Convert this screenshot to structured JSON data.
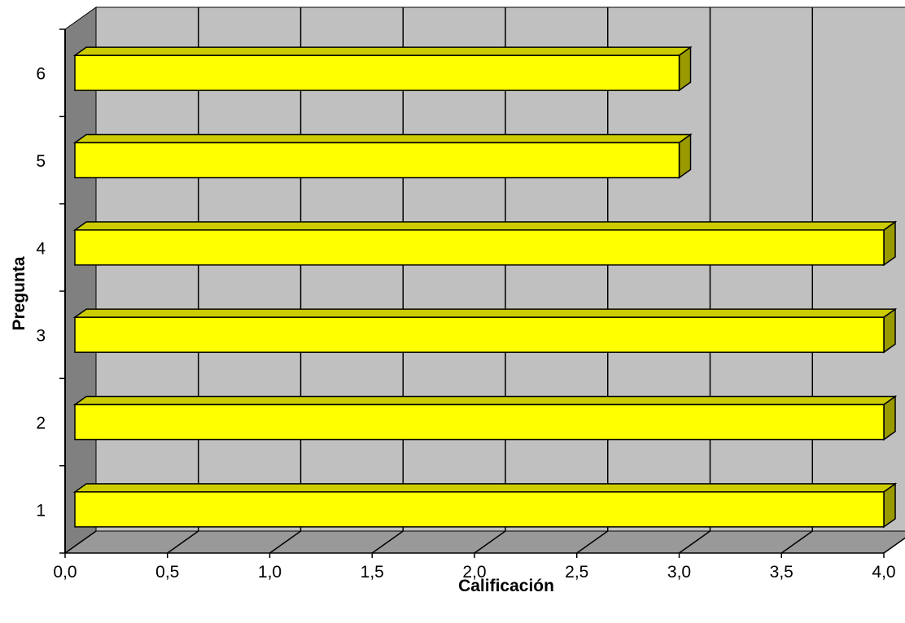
{
  "chart_data": {
    "type": "bar",
    "orientation": "horizontal",
    "style": "3d",
    "categories": [
      "1",
      "2",
      "3",
      "4",
      "5",
      "6"
    ],
    "values": [
      4.0,
      4.0,
      4.0,
      4.0,
      3.0,
      3.0
    ],
    "xlabel": "Calificación",
    "ylabel": "Pregunta",
    "xlim": [
      0,
      4
    ],
    "x_ticks": [
      "0,0",
      "0,5",
      "1,0",
      "1,5",
      "2,0",
      "2,5",
      "3,0",
      "3,5",
      "4,0"
    ],
    "grid": true,
    "colors": {
      "bar_front": "#ffff00",
      "bar_top": "#cccc00",
      "bar_side": "#999900",
      "back_wall": "#c0c0c0",
      "floor": "#999999",
      "side_wall": "#808080"
    }
  }
}
